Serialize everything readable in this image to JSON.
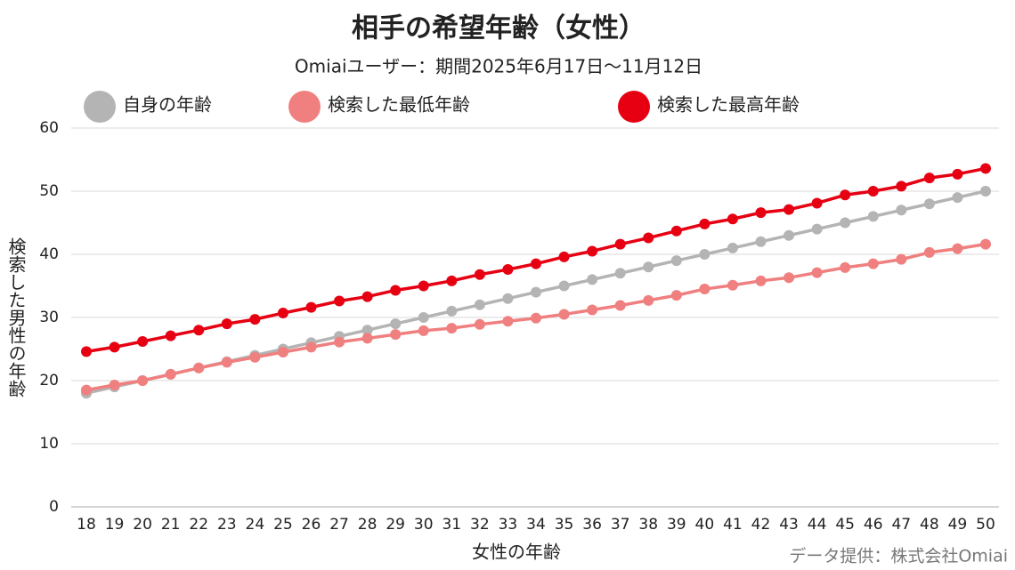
{
  "chart_data": {
    "type": "line",
    "title": "相手の希望年齢（女性）",
    "subtitle": "Omiaiユーザー：期間2025年6月17日～11月12日",
    "x_label": "女性の年齢",
    "y_label": "検索した男性の年齢",
    "source": "データ提供：株式会社Omiai",
    "categories": [
      "18",
      "19",
      "20",
      "21",
      "22",
      "23",
      "24",
      "25",
      "26",
      "27",
      "28",
      "29",
      "30",
      "31",
      "32",
      "33",
      "34",
      "35",
      "36",
      "37",
      "38",
      "39",
      "40",
      "41",
      "42",
      "43",
      "44",
      "45",
      "46",
      "47",
      "48",
      "49",
      "50"
    ],
    "series": [
      {
        "name": "自身の年齢",
        "color": "#b4b4b4",
        "values": [
          18,
          19,
          20,
          21,
          22,
          23,
          24,
          25,
          26,
          27,
          28,
          29,
          30,
          31,
          32,
          33,
          34,
          35,
          36,
          37,
          38,
          39,
          40,
          41,
          42,
          43,
          44,
          45,
          46,
          47,
          48,
          49,
          50
        ]
      },
      {
        "name": "検索した最低年齢",
        "color": "#f07f7f",
        "values": [
          18.5,
          19.3,
          20.0,
          21.0,
          22.0,
          22.9,
          23.7,
          24.5,
          25.3,
          26.1,
          26.7,
          27.3,
          27.9,
          28.3,
          28.9,
          29.4,
          29.9,
          30.5,
          31.2,
          31.9,
          32.7,
          33.5,
          34.5,
          35.1,
          35.8,
          36.3,
          37.1,
          37.9,
          38.5,
          39.2,
          40.3,
          40.9,
          41.6
        ]
      },
      {
        "name": "検索した最高年齢",
        "color": "#e60012",
        "values": [
          24.6,
          25.3,
          26.2,
          27.1,
          28.0,
          29.0,
          29.7,
          30.7,
          31.6,
          32.6,
          33.3,
          34.3,
          35.0,
          35.8,
          36.8,
          37.6,
          38.5,
          39.6,
          40.5,
          41.6,
          42.6,
          43.7,
          44.8,
          45.6,
          46.6,
          47.1,
          48.1,
          49.4,
          50.0,
          50.8,
          52.1,
          52.7,
          53.6
        ]
      }
    ],
    "ylim": [
      0,
      60
    ],
    "yticks": [
      0,
      10,
      20,
      30,
      40,
      50,
      60
    ],
    "grid": true,
    "legend": "top"
  }
}
